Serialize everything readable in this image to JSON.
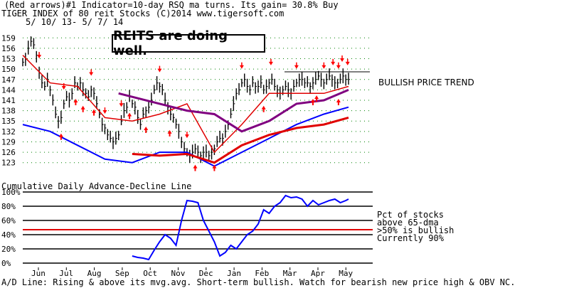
{
  "header": {
    "line1": "(Red arrows)#1 Indicator=10-day RSQ ma turns. Its gain= 30.8% Buy",
    "line2": "TIGER INDEX of  80 reit Stocks  (C)2014  www.tigersoft.com",
    "line3": "5/ 10/ 13- 5/ 7/ 14"
  },
  "annotations": {
    "callout": "REITS are doing well.",
    "trend": "BULLISH PRICE TREND",
    "pct_line1": "Pct of stocks",
    "pct_line2": "above 65-dma",
    "pct_line3": ">50% is bullish",
    "pct_line4": "Currently  90%"
  },
  "lower_title": "Cumulative Daily Advance-Decline Line",
  "footer": "A/D Line: Rising & above its mvg.avg. Short-term bullish. Watch for bearish new price high & OBV NC.",
  "colors": {
    "price": "#000000",
    "ma_short": "#e00000",
    "ma_long": "#800080",
    "ad_line": "#0000ff",
    "arrow": "#ff0000",
    "grid": "#008000"
  },
  "chart_data": [
    {
      "type": "line",
      "title": "TIGER INDEX of  80 reit Stocks",
      "y_ticks": [
        "159",
        "156",
        "153",
        "150",
        "147",
        "144",
        "141",
        "138",
        "135",
        "132",
        "129",
        "126",
        "123"
      ],
      "ylim": [
        121.5,
        160.5
      ],
      "x_ticks": [
        "Jun",
        "Jul",
        "Aug",
        "Sep",
        "Oct",
        "Nov",
        "Dec",
        "Jan",
        "Feb",
        "Mar",
        "Apr",
        "May"
      ],
      "resistance_level": 148,
      "series": [
        {
          "name": "price",
          "x": [
            0,
            3,
            6,
            9,
            12,
            15,
            18,
            21,
            24,
            27,
            30,
            33,
            36,
            39,
            42,
            45,
            48,
            51,
            54,
            57,
            60,
            63,
            66,
            69,
            72,
            75,
            78,
            81,
            84,
            87,
            90,
            93,
            96,
            99,
            102,
            105,
            108,
            111,
            114,
            117,
            120,
            123,
            126,
            129,
            132,
            135,
            138,
            141,
            144,
            147,
            150,
            153,
            156,
            159,
            162,
            165,
            168,
            171,
            174,
            177,
            180,
            183,
            186,
            189,
            192,
            195,
            198,
            201,
            204,
            207,
            210,
            213,
            216,
            219,
            222,
            225,
            228,
            231,
            234,
            237,
            240,
            243,
            246,
            249,
            252,
            255,
            258,
            261,
            264,
            267,
            270,
            273,
            276,
            279,
            282,
            285,
            288,
            291,
            294,
            297,
            300,
            303,
            306,
            309,
            312,
            315,
            318,
            321,
            324,
            327,
            330,
            333,
            336,
            339,
            342,
            345,
            348,
            351,
            354,
            357
          ],
          "values": [
            152,
            153,
            156,
            158,
            157,
            154,
            149,
            146,
            145,
            147,
            144,
            141,
            137,
            135,
            136,
            140,
            142,
            141,
            143,
            146,
            145,
            146,
            144,
            143,
            142,
            144,
            143,
            140,
            137,
            134,
            133,
            131,
            130,
            129,
            130,
            131,
            135,
            138,
            139,
            142,
            140,
            139,
            136,
            134,
            137,
            138,
            139,
            141,
            144,
            146,
            145,
            144,
            141,
            139,
            137,
            136,
            134,
            132,
            129,
            127,
            126,
            125,
            126,
            127,
            126,
            125,
            126,
            126,
            125,
            126,
            127,
            129,
            130,
            130,
            132,
            134,
            137,
            140,
            143,
            144,
            146,
            147,
            145,
            144,
            146,
            145,
            145,
            146,
            144,
            145,
            146,
            147,
            145,
            144,
            143,
            144,
            145,
            144,
            143,
            145,
            146,
            147,
            147,
            146,
            146,
            145,
            146,
            147,
            148,
            147,
            146,
            147,
            148,
            147,
            146,
            146,
            147,
            148,
            147,
            147
          ]
        },
        {
          "name": "short moving average",
          "x": [
            0,
            30,
            60,
            90,
            120,
            150,
            180,
            210,
            240,
            270,
            300,
            330,
            357
          ],
          "values": [
            154,
            146,
            145,
            136,
            135,
            137,
            140,
            126,
            134,
            143,
            143,
            143,
            145
          ]
        },
        {
          "name": "long moving average",
          "x": [
            105,
            150,
            180,
            210,
            240,
            270,
            300,
            330,
            357
          ],
          "values": [
            143,
            140,
            138,
            137,
            132,
            135,
            140,
            141,
            144
          ]
        },
        {
          "name": "blue relative strength line",
          "x": [
            0,
            30,
            60,
            90,
            120,
            150,
            180,
            210,
            240,
            270,
            300,
            330,
            357
          ],
          "values": [
            134,
            132,
            128,
            124,
            123,
            126,
            126,
            122,
            126,
            130,
            134,
            137,
            139
          ]
        }
      ],
      "arrows": {
        "down": [
          18,
          45,
          75,
          90,
          108,
          150,
          180,
          240,
          272,
          300,
          330,
          340,
          346,
          350,
          356
        ],
        "up": [
          42,
          58,
          66,
          78,
          117,
          135,
          161,
          189,
          210,
          264,
          318,
          322,
          346
        ]
      }
    },
    {
      "type": "line",
      "title": "Cumulative Daily Advance-Decline Line",
      "y_ticks": [
        "100%",
        "80%",
        "60%",
        "40%",
        "20%",
        "0%"
      ],
      "ylim": [
        0,
        100
      ],
      "reference_level": 50,
      "series": [
        {
          "name": "Pct of stocks above 65-dma",
          "x": [
            120,
            126,
            132,
            138,
            144,
            150,
            156,
            162,
            168,
            174,
            180,
            186,
            192,
            198,
            204,
            210,
            216,
            222,
            228,
            234,
            240,
            246,
            252,
            258,
            264,
            270,
            276,
            282,
            288,
            294,
            300,
            306,
            312,
            318,
            324,
            330,
            336,
            342,
            348,
            354,
            357
          ],
          "values": [
            10,
            8,
            7,
            5,
            18,
            30,
            40,
            35,
            25,
            60,
            88,
            87,
            85,
            60,
            45,
            30,
            10,
            15,
            25,
            20,
            30,
            40,
            45,
            55,
            75,
            70,
            80,
            85,
            95,
            92,
            93,
            90,
            80,
            88,
            82,
            85,
            88,
            90,
            85,
            88,
            90
          ]
        }
      ]
    }
  ]
}
